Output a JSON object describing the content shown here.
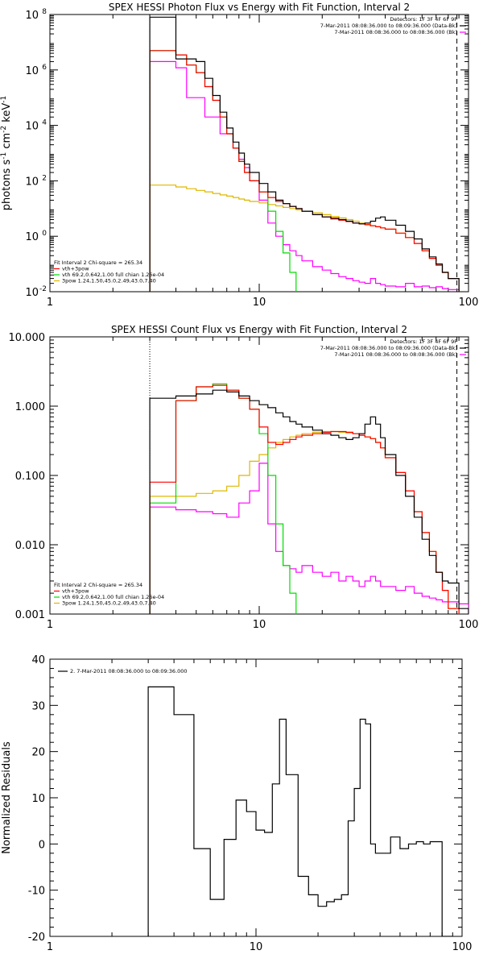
{
  "colors": {
    "data": "#000000",
    "vth_plus_3pow": "#ff0000",
    "vth": "#00dd00",
    "3pow": "#ddb800",
    "background": "#ff00ff"
  },
  "chart_data": [
    {
      "type": "line",
      "step": true,
      "title": "SPEX HESSI Photon Flux vs Energy with Fit Function, Interval 2",
      "xlabel": "",
      "ylabel_parts": [
        "photons s",
        "-1",
        " cm",
        "-2",
        " keV",
        "-1"
      ],
      "xscale": "log",
      "yscale": "log",
      "xlim": [
        1,
        100
      ],
      "ylim": [
        0.01,
        100000000
      ],
      "xticks": [
        {
          "v": 1,
          "label": "1"
        },
        {
          "v": 10,
          "label": "10"
        },
        {
          "v": 100,
          "label": "100"
        }
      ],
      "yticks": [
        {
          "v": 0.01,
          "base": "10",
          "exp": "-2"
        },
        {
          "v": 1,
          "base": "10",
          "exp": "0"
        },
        {
          "v": 100,
          "base": "10",
          "exp": "2"
        },
        {
          "v": 10000,
          "base": "10",
          "exp": "4"
        },
        {
          "v": 1000000,
          "base": "10",
          "exp": "6"
        },
        {
          "v": 100000000,
          "base": "10",
          "exp": "8"
        }
      ],
      "vlines": [
        {
          "x": 3,
          "style": "dotted",
          "color": "#000000"
        },
        {
          "x": 88,
          "style": "dashed",
          "color": "#000000"
        }
      ],
      "legend_topright": [
        {
          "text": "Detectors: 1F 3F 4F 6F 9F",
          "color": "#000000"
        },
        {
          "text": "7-Mar-2011 08:08:36.000 to 08:09:36.000 (Data-Bk)",
          "color": "#000000"
        },
        {
          "text": "7-Mar-2011 08:08:36.000 to 08:08:36.000 (Bk)",
          "color": "#ff00ff"
        }
      ],
      "legend_bottomleft": [
        {
          "text": "Fit Interval 2   Chi-square = 265.34",
          "color": "#000000"
        },
        {
          "text": "vth+3pow",
          "color": "#ff0000"
        },
        {
          "text": "vth 69.2,0.642,1.00  full chian 1.26e-04",
          "color": "#00dd00"
        },
        {
          "text": "3pow 1.24,1.50,45.0,2.49,43.0,7.40",
          "color": "#ddb800"
        }
      ],
      "edges": [
        3,
        3.5,
        4,
        4.5,
        5,
        5.5,
        6,
        6.5,
        7,
        7.5,
        8,
        8.5,
        9,
        10,
        11,
        12,
        13,
        14,
        15,
        16,
        18,
        20,
        22,
        24,
        26,
        28,
        30,
        32,
        34,
        36,
        38,
        40,
        45,
        50,
        55,
        60,
        65,
        70,
        75,
        80,
        90
      ],
      "series": [
        {
          "name": "Data",
          "color": "#000000",
          "values": [
            80000000,
            80000000,
            2500000,
            2500000,
            2000000,
            500000,
            120000,
            30000,
            8000,
            2500,
            1000,
            400,
            200,
            80,
            40,
            20,
            15,
            12,
            10,
            8,
            6,
            5,
            4.5,
            4,
            3.5,
            3,
            2.8,
            3,
            3.5,
            4.5,
            5,
            3.8,
            2.5,
            1.5,
            0.8,
            0.35,
            0.18,
            0.1,
            0.05,
            0.03
          ]
        },
        {
          "name": "vth+3pow",
          "color": "#ff0000",
          "values": [
            5000000,
            5000000,
            3500000,
            1500000,
            800000,
            250000,
            80000,
            20000,
            5000,
            1500,
            500,
            200,
            100,
            40,
            25,
            18,
            15,
            12,
            10,
            8,
            6,
            5,
            4.2,
            3.8,
            3.4,
            3,
            2.8,
            2.6,
            2.4,
            2.2,
            2,
            1.8,
            1.3,
            0.9,
            0.55,
            0.3,
            0.16,
            0.09,
            0.05,
            0.03
          ]
        },
        {
          "name": "vth",
          "color": "#00dd00",
          "values": [
            5000000,
            5000000,
            3500000,
            1500000,
            800000,
            250000,
            80000,
            20000,
            5000,
            1500,
            500,
            200,
            100,
            40,
            8,
            1.5,
            0.25,
            0.05,
            0.008
          ]
        },
        {
          "name": "3pow",
          "color": "#ddb800",
          "values": [
            70,
            70,
            60,
            52,
            45,
            40,
            35,
            31,
            28,
            25,
            22,
            20,
            18,
            16,
            14,
            12.5,
            11,
            10,
            9,
            8,
            7,
            6,
            5.2,
            4.6,
            4,
            3.5,
            3,
            2.7,
            2.4,
            2.2,
            2,
            1.8,
            1.3,
            0.9,
            0.55,
            0.3,
            0.16,
            0.09,
            0.05,
            0.03
          ]
        },
        {
          "name": "Background",
          "color": "#ff00ff",
          "values": [
            2000000,
            2000000,
            1200000,
            100000,
            100000,
            20000,
            20000,
            5000,
            5000,
            1500,
            600,
            300,
            100,
            20,
            3,
            1,
            0.5,
            0.3,
            0.2,
            0.13,
            0.08,
            0.06,
            0.045,
            0.035,
            0.03,
            0.025,
            0.022,
            0.02,
            0.03,
            0.02,
            0.018,
            0.016,
            0.015,
            0.02,
            0.015,
            0.016,
            0.014,
            0.015,
            0.013,
            0.012
          ]
        }
      ]
    },
    {
      "type": "line",
      "step": true,
      "title": "SPEX HESSI Count Flux vs Energy with Fit Function, Interval 2",
      "xlabel": "",
      "xscale": "log",
      "yscale": "log",
      "xlim": [
        1,
        100
      ],
      "ylim": [
        0.001,
        10
      ],
      "xticks": [
        {
          "v": 1,
          "label": "1"
        },
        {
          "v": 10,
          "label": "10"
        },
        {
          "v": 100,
          "label": "100"
        }
      ],
      "yticks": [
        {
          "v": 0.001,
          "label": "0.001"
        },
        {
          "v": 0.01,
          "label": "0.010"
        },
        {
          "v": 0.1,
          "label": "0.100"
        },
        {
          "v": 1,
          "label": "1.000"
        },
        {
          "v": 10,
          "label": "10.000"
        }
      ],
      "vlines": [
        {
          "x": 3,
          "style": "dotted",
          "color": "#000000"
        },
        {
          "x": 88,
          "style": "dashed",
          "color": "#000000"
        }
      ],
      "legend_topright": [
        {
          "text": "Detectors: 1F 3F 4F 6F 9F",
          "color": "#000000"
        },
        {
          "text": "7-Mar-2011 08:08:36.000 to 08:09:36.000 (Data-Bk)",
          "color": "#000000"
        },
        {
          "text": "7-Mar-2011 08:08:36.000 to 08:08:36.000 (Bk)",
          "color": "#ff00ff"
        }
      ],
      "legend_bottomleft": [
        {
          "text": "Fit Interval 2   Chi-square = 265.34",
          "color": "#000000"
        },
        {
          "text": "vth+3pow",
          "color": "#ff0000"
        },
        {
          "text": "vth 69.2,0.642,1.00  full chian 1.26e-04",
          "color": "#00dd00"
        },
        {
          "text": "3pow 1.24,1.50,45.0,2.49,43.0,7.40",
          "color": "#ddb800"
        }
      ],
      "edges": [
        3,
        4,
        5,
        6,
        7,
        8,
        9,
        10,
        11,
        12,
        13,
        14,
        15,
        16,
        18,
        20,
        22,
        24,
        26,
        28,
        30,
        32,
        34,
        36,
        38,
        40,
        45,
        50,
        55,
        60,
        65,
        70,
        75,
        80,
        90,
        100
      ],
      "series": [
        {
          "name": "Data",
          "color": "#000000",
          "values": [
            1.3,
            1.4,
            1.5,
            1.7,
            1.6,
            1.4,
            1.2,
            1.05,
            0.95,
            0.8,
            0.7,
            0.6,
            0.55,
            0.5,
            0.45,
            0.4,
            0.38,
            0.35,
            0.33,
            0.35,
            0.4,
            0.55,
            0.7,
            0.55,
            0.35,
            0.2,
            0.1,
            0.05,
            0.025,
            0.012,
            0.007,
            0.004,
            0.003,
            0.0028,
            0.0012
          ]
        },
        {
          "name": "vth+3pow",
          "color": "#ff0000",
          "values": [
            0.08,
            1.2,
            1.9,
            2.0,
            1.7,
            1.3,
            0.9,
            0.5,
            0.3,
            0.28,
            0.3,
            0.33,
            0.36,
            0.38,
            0.4,
            0.42,
            0.43,
            0.43,
            0.42,
            0.4,
            0.38,
            0.36,
            0.34,
            0.3,
            0.25,
            0.18,
            0.11,
            0.06,
            0.03,
            0.015,
            0.008,
            0.004,
            0.0022,
            0.0012,
            0.0009
          ]
        },
        {
          "name": "vth",
          "color": "#00dd00",
          "values": [
            0.04,
            1.2,
            1.9,
            2.1,
            1.7,
            1.3,
            0.9,
            0.4,
            0.1,
            0.02,
            0.005,
            0.002,
            0.0007
          ]
        },
        {
          "name": "3pow",
          "color": "#ddb800",
          "values": [
            0.05,
            0.05,
            0.055,
            0.06,
            0.07,
            0.1,
            0.16,
            0.2,
            0.25,
            0.3,
            0.33,
            0.36,
            0.38,
            0.4,
            0.42,
            0.43,
            0.43,
            0.42,
            0.41,
            0.4,
            0.38,
            0.36,
            0.34,
            0.3,
            0.25,
            0.18,
            0.11,
            0.06,
            0.03,
            0.015,
            0.008,
            0.004,
            0.0022,
            0.0012,
            0.0009
          ]
        },
        {
          "name": "Background",
          "color": "#ff00ff",
          "values": [
            0.035,
            0.032,
            0.03,
            0.028,
            0.025,
            0.04,
            0.06,
            0.15,
            0.02,
            0.008,
            0.005,
            0.0045,
            0.004,
            0.005,
            0.004,
            0.0035,
            0.004,
            0.003,
            0.0035,
            0.003,
            0.0025,
            0.003,
            0.0035,
            0.003,
            0.0025,
            0.0025,
            0.0022,
            0.0025,
            0.002,
            0.0018,
            0.0017,
            0.0016,
            0.0015,
            0.0015,
            0.0014
          ]
        }
      ]
    },
    {
      "type": "line",
      "step": true,
      "title": "",
      "xlabel": "",
      "ylabel": "Normalized Residuals",
      "xscale": "log",
      "yscale": "linear",
      "xlim": [
        1,
        100
      ],
      "ylim": [
        -20,
        40
      ],
      "xticks": [
        {
          "v": 1,
          "label": "1"
        },
        {
          "v": 10,
          "label": "10"
        },
        {
          "v": 100,
          "label": "100"
        }
      ],
      "yticks": [
        {
          "v": -20,
          "label": "-20"
        },
        {
          "v": -10,
          "label": "-10"
        },
        {
          "v": 0,
          "label": "0"
        },
        {
          "v": 10,
          "label": "10"
        },
        {
          "v": 20,
          "label": "20"
        },
        {
          "v": 30,
          "label": "30"
        },
        {
          "v": 40,
          "label": "40"
        }
      ],
      "vlines": [],
      "legend_topleft": [
        {
          "text": "2.  7-Mar-2011 08:08:36.000 to 08:09:36.000",
          "color": "#000000"
        }
      ],
      "edges": [
        3,
        3.5,
        4,
        4.5,
        5,
        5.5,
        6,
        6.5,
        7,
        7.5,
        8,
        8.5,
        9,
        10,
        11,
        12,
        13,
        14,
        15,
        16,
        18,
        20,
        22,
        24,
        26,
        28,
        30,
        32,
        34,
        36,
        38,
        40,
        45,
        50,
        55,
        60,
        65,
        70,
        75,
        80,
        90
      ],
      "series": [
        {
          "name": "residuals",
          "color": "#000000",
          "values": [
            34,
            34,
            28,
            28,
            -1,
            -1,
            -12,
            -12,
            1,
            1,
            9.5,
            9.5,
            7,
            3,
            2.5,
            13,
            27,
            15,
            15,
            -7,
            -11,
            -13.5,
            -12.5,
            -12,
            -11,
            5,
            12,
            27,
            26,
            0,
            -2,
            -2,
            1.5,
            -1,
            0,
            0.5,
            0,
            0.5,
            0.5,
            -20
          ]
        }
      ],
      "zero_start": -20
    }
  ]
}
